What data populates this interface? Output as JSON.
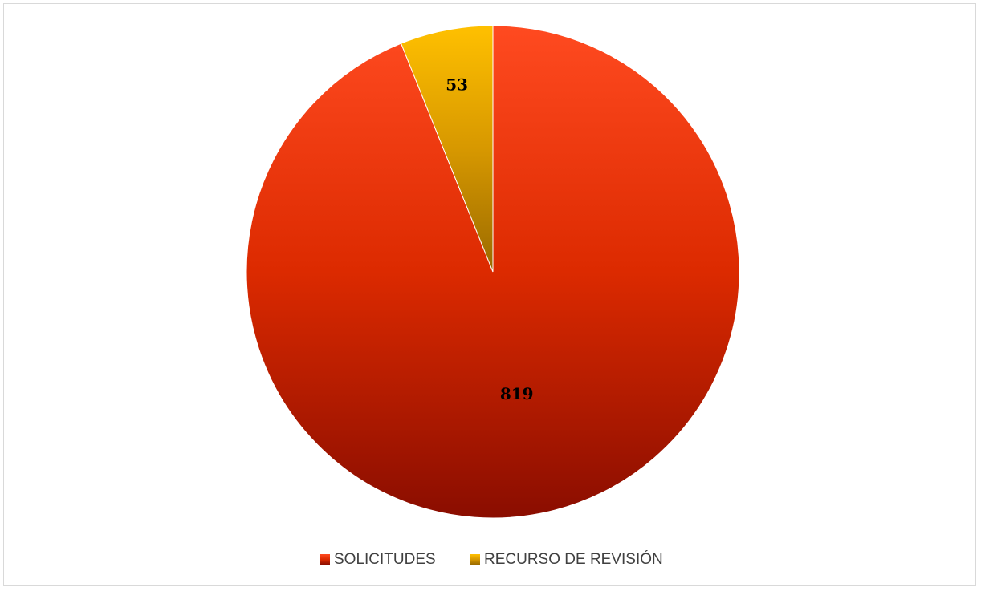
{
  "chart_data": {
    "type": "pie",
    "title": "",
    "categories": [
      "SOLICITUDES",
      "RECURSO DE REVISIÓN"
    ],
    "values": [
      819,
      53
    ],
    "data_labels": [
      "819",
      "53"
    ],
    "colors": {
      "SOLICITUDES": {
        "light": "#ff4a20",
        "mid": "#dc2a00",
        "dark": "#8a0d00"
      },
      "RECURSO DE REVISIÓN": {
        "light": "#ffc000",
        "mid": "#d79800",
        "dark": "#9a6a00"
      }
    },
    "start_angle_deg": 0,
    "direction": "clockwise",
    "legend_position": "bottom",
    "grid": false
  }
}
